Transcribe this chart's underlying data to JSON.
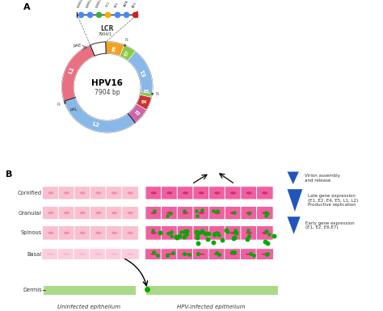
{
  "title_a": "A",
  "title_b": "B",
  "genome_label": "HPV16",
  "genome_bp": "7904 bp",
  "lcr_bar_labels": [
    "E2BS1",
    "E2BS2",
    "E2BS3",
    "YY1",
    "SP1",
    "TATA",
    "ATG"
  ],
  "lcr_dot_colors": [
    "#4488FF",
    "#4488FF",
    "#44AA44",
    "#FFAA00",
    "#4488FF",
    "#4488FF",
    "#CC2222"
  ],
  "epithelium_layers": [
    "Cornified",
    "Granular",
    "Spinous",
    "Basal",
    "Dermis"
  ],
  "cell_color_uninfected": "#F9C0D0",
  "cell_color_infected": "#F060A0",
  "dermis_color": "#AADA88",
  "nucleus_uninfected": "#F090B0",
  "nucleus_infected": "#CC3366",
  "virion_color": "#00AA00",
  "blue_arrow": "#2255BB",
  "legend_texts": [
    "Virion assembly\nand release",
    "Late gene expression\n(E1, E2, E4, E5, L1, L2)\nProductive replication",
    "Early gene expression\n(E1, E2, E6,E7)"
  ],
  "bg_color": "#FFFFFF",
  "seg_L1_color": "#E87080",
  "seg_L2_color": "#88B8E8",
  "seg_E6_color": "#F5A020",
  "seg_E7_color": "#88CC44",
  "seg_E1_color": "#88B8E8",
  "seg_E2_color": "#CC66AA",
  "seg_E4_color": "#CC3333",
  "seg_E5_color": "#88CC44",
  "seg_LCR_color": "#F0A0C0"
}
